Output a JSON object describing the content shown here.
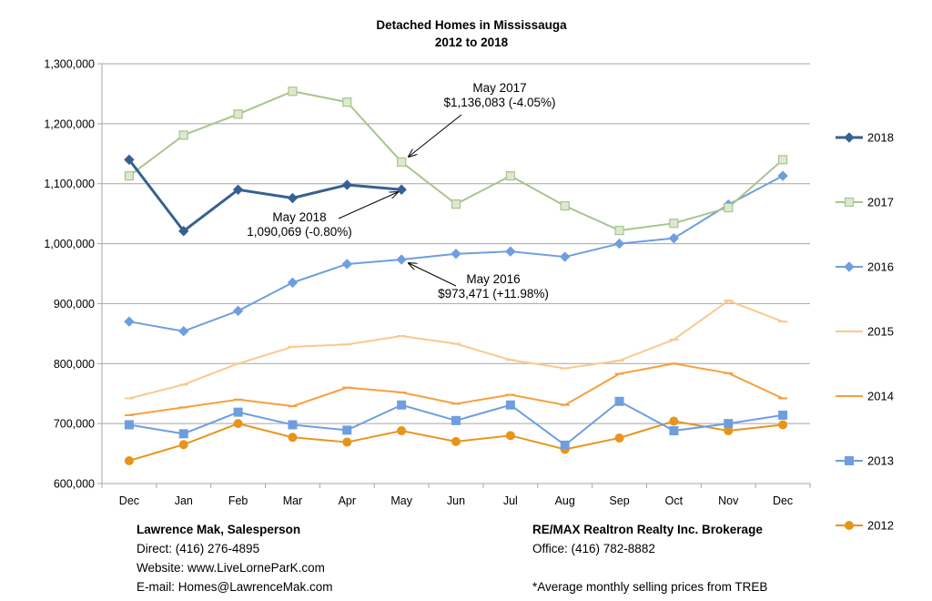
{
  "chart_data": {
    "type": "line",
    "title": "Detached Homes in Mississauga",
    "subtitle": "2012 to 2018",
    "categories": [
      "Dec",
      "Jan",
      "Feb",
      "Mar",
      "Apr",
      "May",
      "Jun",
      "Jul",
      "Aug",
      "Sep",
      "Oct",
      "Nov",
      "Dec"
    ],
    "ylim": [
      600000,
      1300000
    ],
    "yticks": [
      600000,
      700000,
      800000,
      900000,
      1000000,
      1100000,
      1200000,
      1300000
    ],
    "ytick_labels": [
      "600,000",
      "700,000",
      "800,000",
      "900,000",
      "1,000,000",
      "1,100,000",
      "1,200,000",
      "1,300,000"
    ],
    "grid": true,
    "legend_position": "right",
    "series": [
      {
        "name": "2018",
        "color": "#376092",
        "marker": "diamond",
        "width": 3,
        "values": [
          1140000,
          1021000,
          1090000,
          1076000,
          1098000,
          1090069,
          null,
          null,
          null,
          null,
          null,
          null,
          null
        ]
      },
      {
        "name": "2017",
        "color": "#a9c48f",
        "marker": "square-hollow",
        "width": 2,
        "values": [
          1113000,
          1181000,
          1216000,
          1254000,
          1236000,
          1136083,
          1066000,
          1113000,
          1063000,
          1022000,
          1034000,
          1060000,
          1140000
        ]
      },
      {
        "name": "2016",
        "color": "#6f9ee0",
        "marker": "diamond",
        "width": 2,
        "values": [
          870000,
          854000,
          888000,
          935000,
          966000,
          973471,
          983000,
          987000,
          978000,
          1000000,
          1009000,
          1065000,
          1113000
        ]
      },
      {
        "name": "2015",
        "color": "#fac98d",
        "marker": "dash",
        "width": 2,
        "values": [
          742000,
          765000,
          800000,
          828000,
          832000,
          846000,
          833000,
          806000,
          792000,
          805000,
          840000,
          905000,
          870000
        ]
      },
      {
        "name": "2014",
        "color": "#f5a040",
        "marker": "dash",
        "width": 2,
        "values": [
          714000,
          727000,
          740000,
          729000,
          760000,
          752000,
          733000,
          748000,
          731000,
          783000,
          800000,
          784000,
          742000
        ]
      },
      {
        "name": "2013",
        "color": "#6f9ee0",
        "marker": "square",
        "width": 2,
        "values": [
          698000,
          683000,
          719000,
          698000,
          689000,
          731000,
          705000,
          731000,
          664000,
          737000,
          688000,
          700000,
          714000
        ]
      },
      {
        "name": "2012",
        "color": "#e8941a",
        "marker": "circle",
        "width": 2,
        "values": [
          638000,
          665000,
          700000,
          677000,
          669000,
          688000,
          670000,
          680000,
          657000,
          676000,
          704000,
          688000,
          698000
        ]
      }
    ],
    "annotations": [
      {
        "name": "annotation-may-2017",
        "series": 1,
        "point": 5,
        "lines": [
          "May 2017",
          "$1,136,083 (-4.05%)"
        ]
      },
      {
        "name": "annotation-may-2018",
        "series": 0,
        "point": 5,
        "lines": [
          "May 2018",
          "1,090,069 (-0.80%)"
        ]
      },
      {
        "name": "annotation-may-2016",
        "series": 2,
        "point": 5,
        "lines": [
          "May 2016",
          "$973,471 (+11.98%)"
        ]
      }
    ]
  },
  "footer": {
    "left": {
      "name": "Lawrence Mak, Salesperson",
      "direct": "Direct:  (416) 276-4895",
      "website": "Website:  www.LiveLorneParK.com",
      "email": "E-mail:  Homes@LawrenceMak.com"
    },
    "right": {
      "brokerage": "RE/MAX Realtron Realty Inc. Brokerage",
      "office": "Office: (416) 782-8882",
      "note": "*Average monthly selling prices from TREB"
    }
  }
}
